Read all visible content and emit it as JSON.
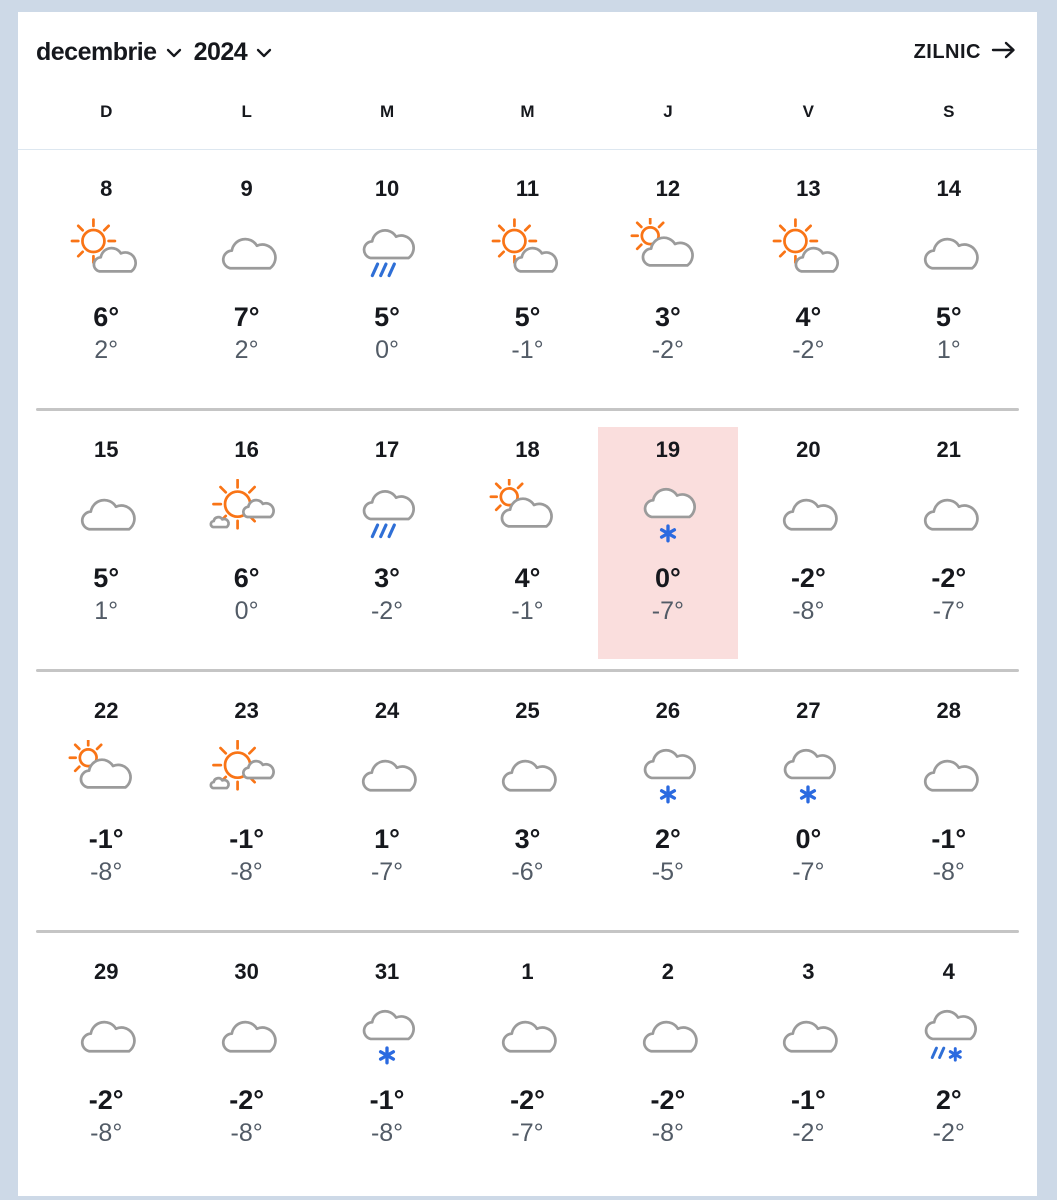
{
  "header": {
    "month": "decembrie",
    "year": "2024",
    "daily_label": "ZILNIC"
  },
  "day_headers": [
    "D",
    "L",
    "M",
    "M",
    "J",
    "V",
    "S"
  ],
  "weeks": [
    {
      "days": [
        {
          "num": "8",
          "icon": "partly-sunny",
          "high": "6°",
          "low": "2°"
        },
        {
          "num": "9",
          "icon": "cloudy",
          "high": "7°",
          "low": "2°"
        },
        {
          "num": "10",
          "icon": "rain",
          "high": "5°",
          "low": "0°"
        },
        {
          "num": "11",
          "icon": "partly-sunny",
          "high": "5°",
          "low": "-1°"
        },
        {
          "num": "12",
          "icon": "mostly-cloudy",
          "high": "3°",
          "low": "-2°"
        },
        {
          "num": "13",
          "icon": "partly-sunny",
          "high": "4°",
          "low": "-2°"
        },
        {
          "num": "14",
          "icon": "cloudy",
          "high": "5°",
          "low": "1°"
        }
      ]
    },
    {
      "days": [
        {
          "num": "15",
          "icon": "cloudy",
          "high": "5°",
          "low": "1°"
        },
        {
          "num": "16",
          "icon": "mostly-sunny",
          "high": "6°",
          "low": "0°"
        },
        {
          "num": "17",
          "icon": "rain",
          "high": "3°",
          "low": "-2°"
        },
        {
          "num": "18",
          "icon": "mostly-cloudy",
          "high": "4°",
          "low": "-1°"
        },
        {
          "num": "19",
          "icon": "snow",
          "high": "0°",
          "low": "-7°",
          "highlighted": true
        },
        {
          "num": "20",
          "icon": "cloudy",
          "high": "-2°",
          "low": "-8°"
        },
        {
          "num": "21",
          "icon": "cloudy",
          "high": "-2°",
          "low": "-7°"
        }
      ]
    },
    {
      "days": [
        {
          "num": "22",
          "icon": "mostly-cloudy",
          "high": "-1°",
          "low": "-8°"
        },
        {
          "num": "23",
          "icon": "mostly-sunny",
          "high": "-1°",
          "low": "-8°"
        },
        {
          "num": "24",
          "icon": "cloudy",
          "high": "1°",
          "low": "-7°"
        },
        {
          "num": "25",
          "icon": "cloudy",
          "high": "3°",
          "low": "-6°"
        },
        {
          "num": "26",
          "icon": "snow",
          "high": "2°",
          "low": "-5°"
        },
        {
          "num": "27",
          "icon": "snow",
          "high": "0°",
          "low": "-7°"
        },
        {
          "num": "28",
          "icon": "cloudy",
          "high": "-1°",
          "low": "-8°"
        }
      ]
    },
    {
      "days": [
        {
          "num": "29",
          "icon": "cloudy",
          "high": "-2°",
          "low": "-8°"
        },
        {
          "num": "30",
          "icon": "cloudy",
          "high": "-2°",
          "low": "-8°"
        },
        {
          "num": "31",
          "icon": "snow",
          "high": "-1°",
          "low": "-8°"
        },
        {
          "num": "1",
          "icon": "cloudy",
          "high": "-2°",
          "low": "-7°"
        },
        {
          "num": "2",
          "icon": "cloudy",
          "high": "-2°",
          "low": "-8°"
        },
        {
          "num": "3",
          "icon": "cloudy",
          "high": "-1°",
          "low": "-2°"
        },
        {
          "num": "4",
          "icon": "rain-snow",
          "high": "2°",
          "low": "-2°"
        }
      ]
    }
  ],
  "colors": {
    "page_bg": "#cdd9e7",
    "card_bg": "#ffffff",
    "highlight_bg": "#fadedd",
    "sun": "#f97416",
    "cloud": "#9b9b9b",
    "rain": "#2f6fd6",
    "snow": "#2b6ae0",
    "high_temp": "#16181d",
    "low_temp": "#525b66",
    "week_separator": "#c5c5c5",
    "header_separator": "#dde7f0"
  }
}
